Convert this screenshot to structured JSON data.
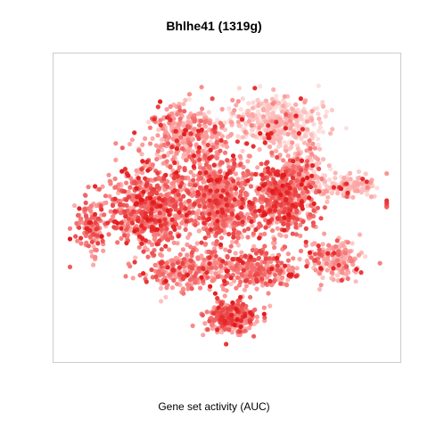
{
  "chart_data": {
    "type": "scatter",
    "title": "Bhlhe41 (1319g)",
    "xlabel": "Gene set activity (AUC)",
    "ylabel": "",
    "x_range": [
      -40,
      40
    ],
    "y_range": [
      -40,
      40
    ],
    "grid": false,
    "legend": "none",
    "color_scale": {
      "low": "#fde0dd",
      "mid": "#fb9a99",
      "high": "#e31a1c"
    },
    "clusters": [
      {
        "cx": 12,
        "cy": 24,
        "sx": 10,
        "sy": 7,
        "n": 420,
        "auc": 0.15
      },
      {
        "cx": -10,
        "cy": 20,
        "sx": 9,
        "sy": 8,
        "n": 360,
        "auc": 0.45
      },
      {
        "cx": -20,
        "cy": 0,
        "sx": 9,
        "sy": 11,
        "n": 620,
        "auc": 0.62
      },
      {
        "cx": -2,
        "cy": 2,
        "sx": 9,
        "sy": 12,
        "n": 650,
        "auc": 0.6
      },
      {
        "cx": 14,
        "cy": 3,
        "sx": 7,
        "sy": 9,
        "n": 480,
        "auc": 0.66
      },
      {
        "cx": 19,
        "cy": 11,
        "sx": 4,
        "sy": 7,
        "n": 140,
        "auc": 0.3
      },
      {
        "cx": 30,
        "cy": 6,
        "sx": 7,
        "sy": 3,
        "n": 150,
        "auc": 0.18
      },
      {
        "cx": 40,
        "cy": 1,
        "sx": 1,
        "sy": 1,
        "n": 8,
        "auc": 0.6
      },
      {
        "cx": 26,
        "cy": -14,
        "sx": 6,
        "sy": 5,
        "n": 190,
        "auc": 0.4
      },
      {
        "cx": 8,
        "cy": -17,
        "sx": 9,
        "sy": 5,
        "n": 260,
        "auc": 0.55
      },
      {
        "cx": -10,
        "cy": -17,
        "sx": 9,
        "sy": 5,
        "n": 260,
        "auc": 0.56
      },
      {
        "cx": 1,
        "cy": -30,
        "sx": 6,
        "sy": 4,
        "n": 280,
        "auc": 0.62
      },
      {
        "cx": -34,
        "cy": -5,
        "sx": 4,
        "sy": 7,
        "n": 120,
        "auc": 0.6
      }
    ]
  }
}
